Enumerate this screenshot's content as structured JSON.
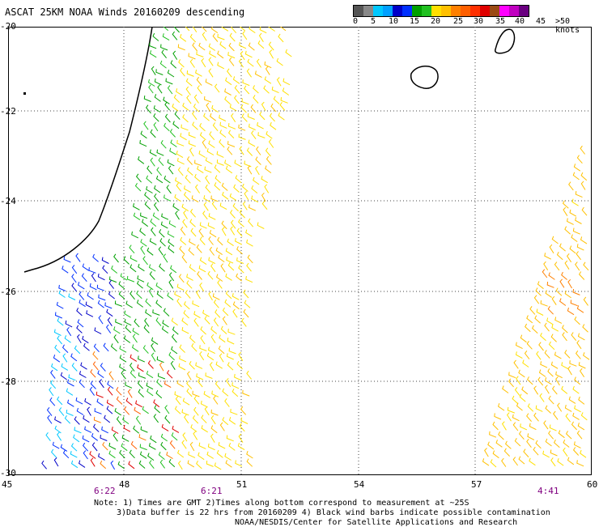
{
  "title": "ASCAT 25KM NOAA Winds 20160209 descending",
  "colorbar": {
    "colors": [
      "#555555",
      "#888888",
      "#00c8ff",
      "#00a0ff",
      "#0000c8",
      "#0030ff",
      "#00a000",
      "#20c020",
      "#ffe000",
      "#ffc000",
      "#ff8000",
      "#ff6000",
      "#ff3000",
      "#e00000",
      "#9b4a14",
      "#ff00ff",
      "#c000c0",
      "#6a0080"
    ],
    "labels": [
      "0",
      "5",
      "10",
      "15",
      "20",
      "25",
      "30",
      "35",
      "40",
      "45",
      ">50 knots"
    ]
  },
  "map": {
    "lat_labels": [
      "-20",
      "-22",
      "-24",
      "-26",
      "-28",
      "-30"
    ],
    "lon_labels": [
      "45",
      "48",
      "51",
      "54",
      "57",
      "60"
    ],
    "time_labels": [
      "6:22",
      "6:21",
      "4:41"
    ],
    "time_color": "#800080"
  },
  "notes": {
    "line1": "Note: 1) Times are GMT 2)Times along bottom correspond to measurement at ~25S",
    "line2": "3)Data buffer is 22 hrs from 20160209 4) Black wind barbs indicate possible contamination",
    "line3": "NOAA/NESDIS/Center for Satellite Applications and Research"
  }
}
